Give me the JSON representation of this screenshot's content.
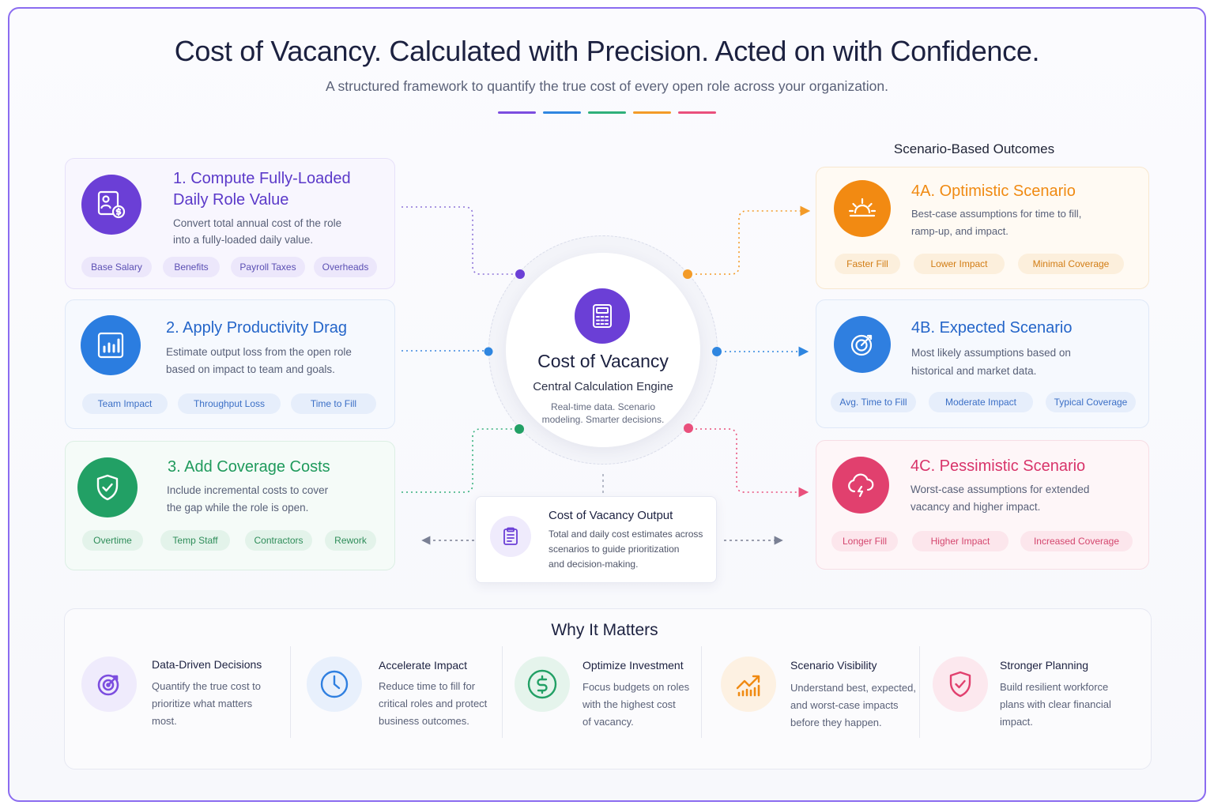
{
  "header": {
    "title": "Cost of Vacancy. Calculated with Precision. Acted on with Confidence.",
    "subtitle": "A structured framework to quantify the true cost of every open role across your organization.",
    "accent_colors": [
      "#7c4ddf",
      "#2f86e0",
      "#2fb07a",
      "#f39b28",
      "#e9507c"
    ]
  },
  "steps": [
    {
      "title_line1": "1. Compute Fully-Loaded",
      "title_line2": "Daily Role Value",
      "desc_line1": "Convert total annual cost of the role",
      "desc_line2": "into a fully-loaded daily value.",
      "icon": "id-card-dollar-icon",
      "color": "#6b3fd6",
      "tags": [
        "Base Salary",
        "Benefits",
        "Payroll Taxes",
        "Overheads"
      ]
    },
    {
      "title_line1": "2. Apply Productivity Drag",
      "desc_line1": "Estimate output loss from the open role",
      "desc_line2": "based on impact to team and goals.",
      "icon": "bar-chart-icon",
      "color": "#2b7de0",
      "tags": [
        "Team Impact",
        "Throughput Loss",
        "Time to Fill"
      ]
    },
    {
      "title_line1": "3. Add Coverage Costs",
      "desc_line1": "Include incremental costs to cover",
      "desc_line2": "the gap while the role is open.",
      "icon": "shield-check-icon",
      "color": "#22a065",
      "tags": [
        "Overtime",
        "Temp Staff",
        "Contractors",
        "Rework"
      ]
    }
  ],
  "center": {
    "title": "Cost of Vacancy",
    "subtitle": "Central Calculation Engine",
    "desc_line1": "Real-time data. Scenario",
    "desc_line2": "modeling. Smarter decisions.",
    "icon": "calculator-icon"
  },
  "output": {
    "title": "Cost of Vacancy Output",
    "desc_line1": "Total and daily cost estimates across",
    "desc_line2": "scenarios to guide prioritization",
    "desc_line3": "and decision-making.",
    "icon": "clipboard-icon"
  },
  "outcomes": {
    "heading": "Scenario-Based Outcomes",
    "items": [
      {
        "title": "4A. Optimistic Scenario",
        "desc_line1": "Best-case assumptions for time to fill,",
        "desc_line2": "ramp-up, and impact.",
        "icon": "sunrise-icon",
        "color": "#f08a12",
        "tags": [
          "Faster Fill",
          "Lower Impact",
          "Minimal Coverage"
        ]
      },
      {
        "title": "4B. Expected Scenario",
        "desc_line1": "Most likely assumptions based on",
        "desc_line2": "historical and market data.",
        "icon": "target-arrow-icon",
        "color": "#2f7fe0",
        "tags": [
          "Avg. Time to Fill",
          "Moderate Impact",
          "Typical Coverage"
        ]
      },
      {
        "title": "4C. Pessimistic Scenario",
        "desc_line1": "Worst-case assumptions for extended",
        "desc_line2": "vacancy and higher impact.",
        "icon": "storm-cloud-icon",
        "color": "#e1406e",
        "tags": [
          "Longer Fill",
          "Higher Impact",
          "Increased Coverage"
        ]
      }
    ]
  },
  "why": {
    "title": "Why It Matters",
    "items": [
      {
        "head": "Data-Driven Decisions",
        "desc_line1": "Quantify the true cost to",
        "desc_line2": "prioritize what matters",
        "desc_line3": "most.",
        "icon": "target-icon",
        "color": "#7c4ddf"
      },
      {
        "head": "Accelerate Impact",
        "desc_line1": "Reduce time to fill for",
        "desc_line2": "critical roles and protect",
        "desc_line3": "business outcomes.",
        "icon": "clock-icon",
        "color": "#2f7fe0"
      },
      {
        "head": "Optimize Investment",
        "desc_line1": "Focus budgets on roles",
        "desc_line2": "with the highest cost",
        "desc_line3": "of vacancy.",
        "icon": "dollar-icon",
        "color": "#22a065"
      },
      {
        "head": "Scenario Visibility",
        "desc_line1": "Understand best, expected,",
        "desc_line2": "and worst-case impacts",
        "desc_line3": "before they happen.",
        "icon": "trend-chart-icon",
        "color": "#f08a12"
      },
      {
        "head": "Stronger Planning",
        "desc_line1": "Build resilient workforce",
        "desc_line2": "plans with clear financial",
        "desc_line3": "impact.",
        "icon": "shield-check-icon",
        "color": "#e1406e"
      }
    ]
  }
}
